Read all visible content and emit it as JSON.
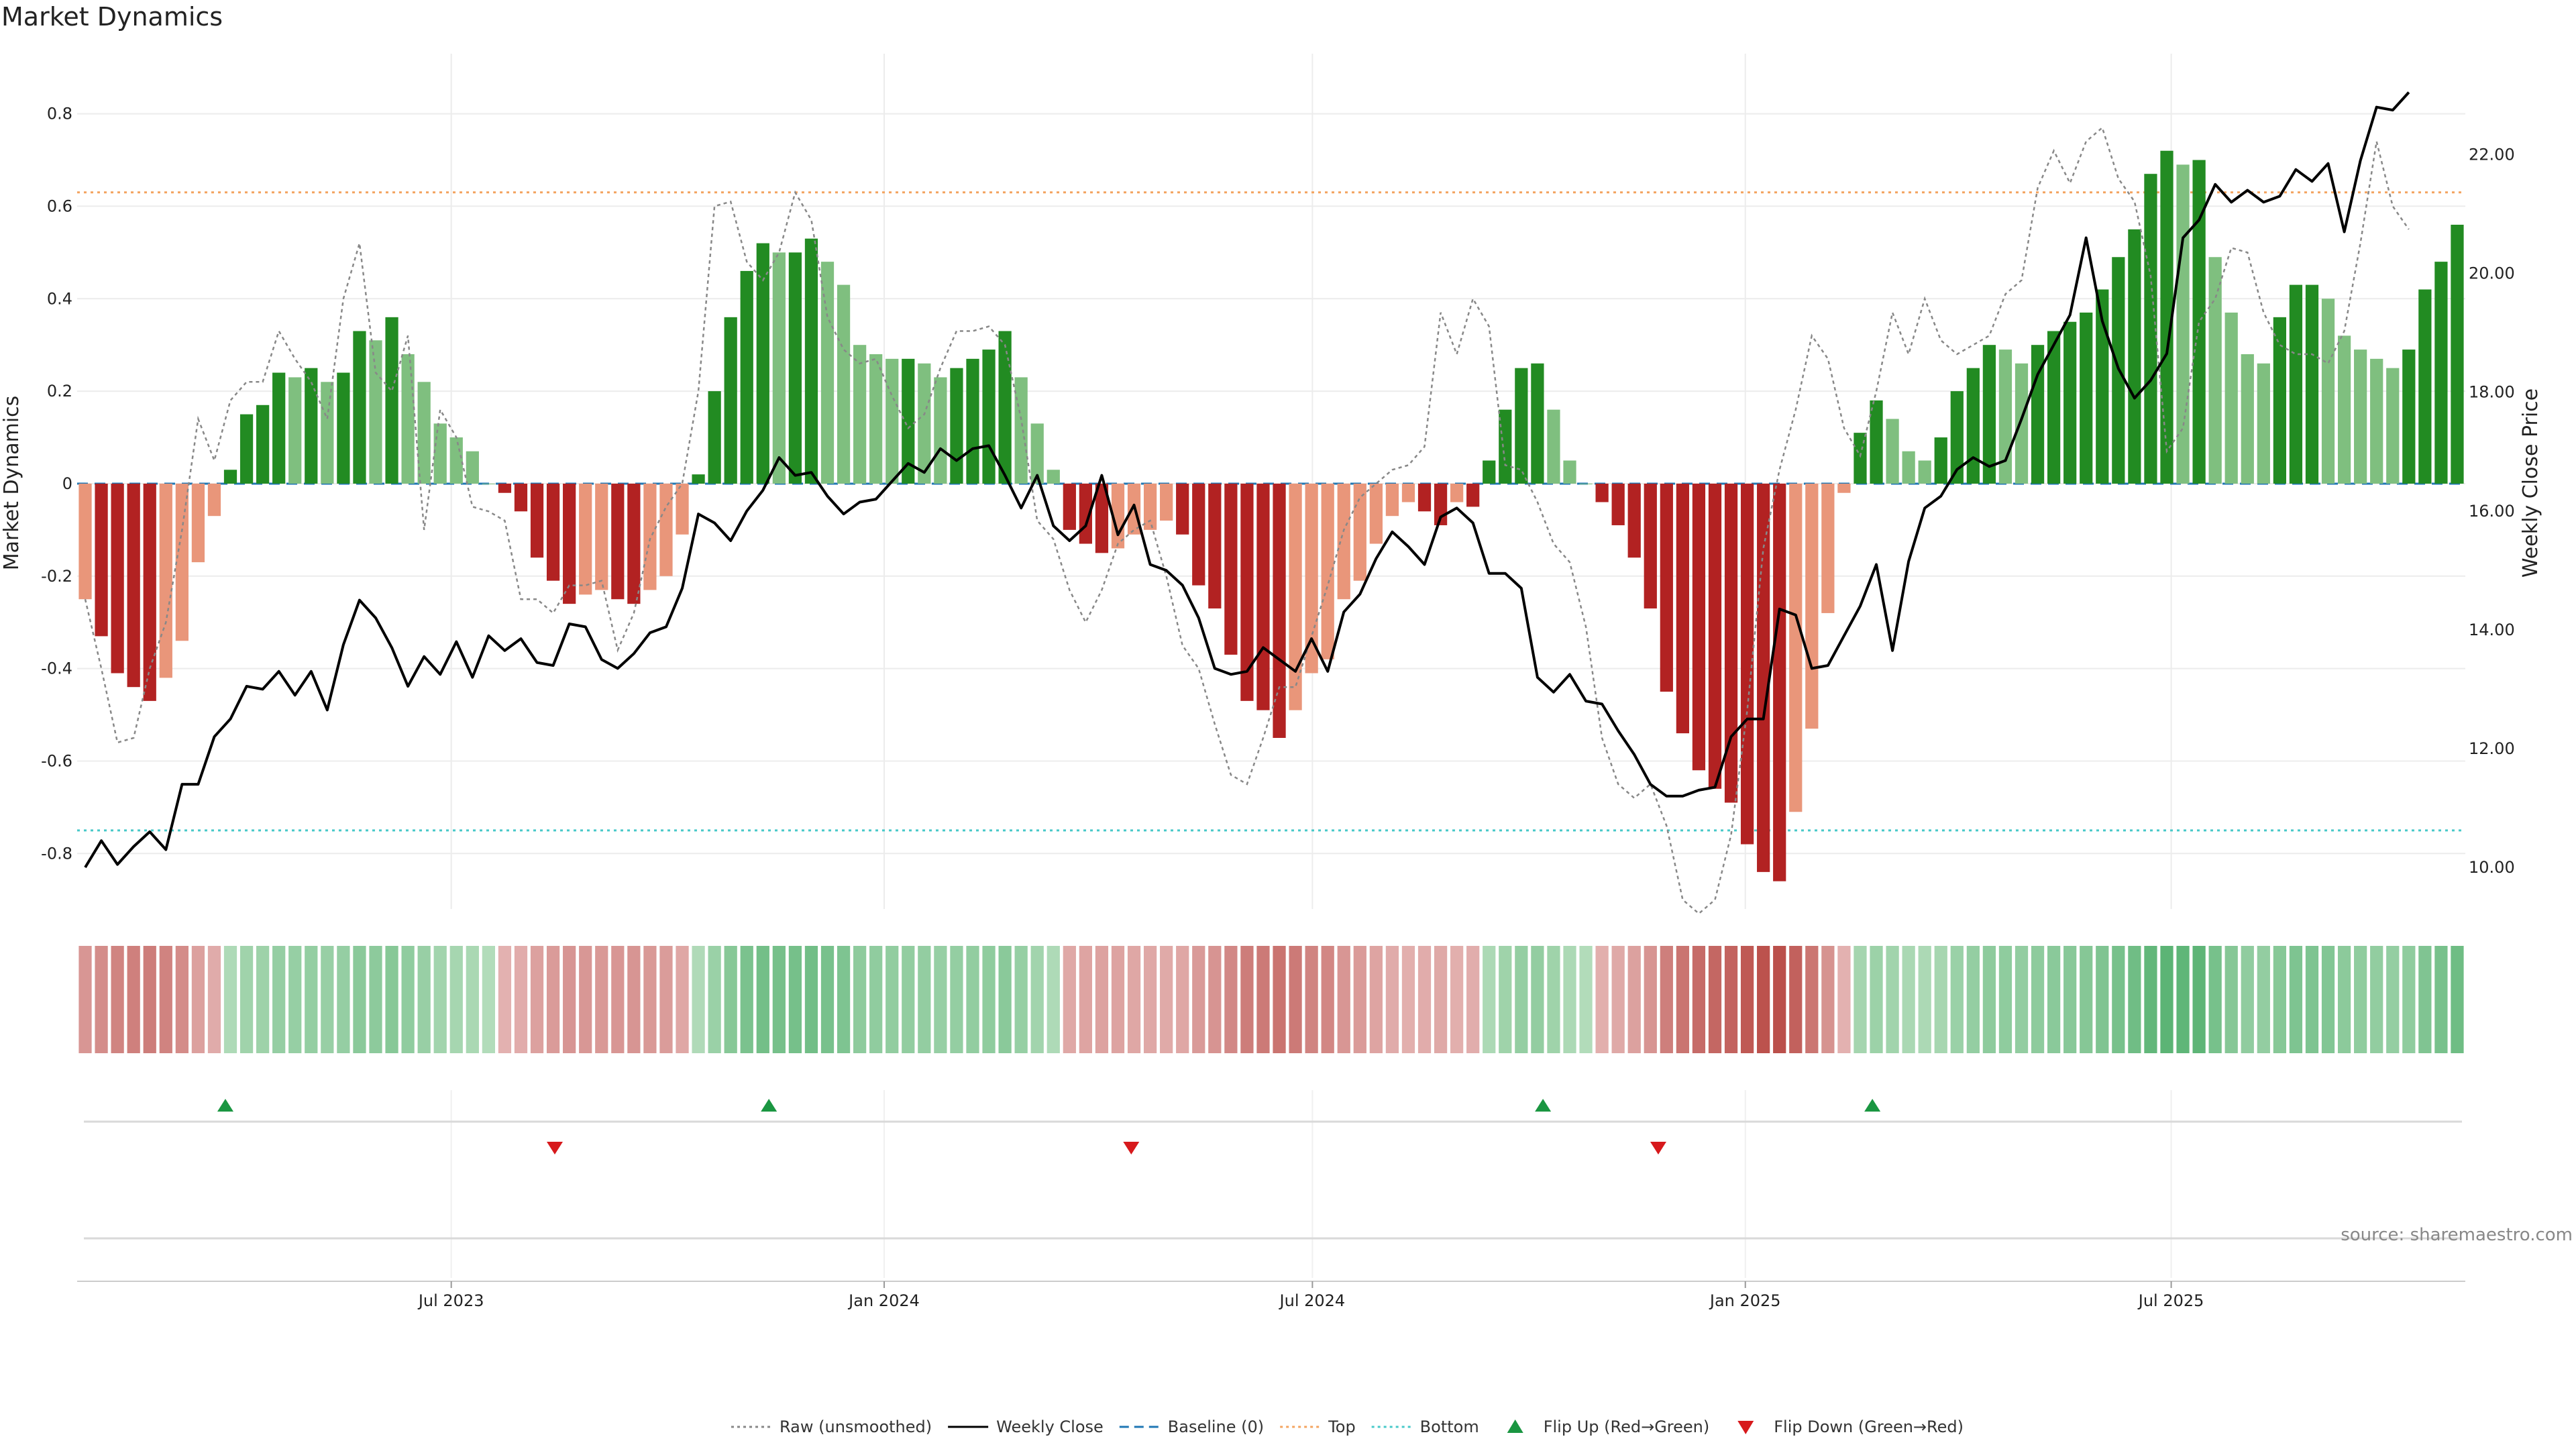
{
  "chart_data": {
    "type": "bar",
    "title": "Market Dynamics",
    "ylabel_left": "Market Dynamics",
    "ylabel_right": "Weekly Close Price",
    "ylim_left": [
      -0.92,
      0.93
    ],
    "ylim_right": [
      9.3,
      23.7
    ],
    "yticks_left": [
      "0.8",
      "0.6",
      "0.4",
      "0.2",
      "0",
      "-0.2",
      "-0.4",
      "-0.6",
      "-0.8"
    ],
    "yticks_right": [
      "22.00",
      "20.00",
      "18.00",
      "16.00",
      "14.00",
      "12.00",
      "10.00"
    ],
    "x_start": "2023-01-23",
    "x_end": "2025-11-03",
    "xticks": [
      {
        "date": "2023-07-01",
        "label": "Jul 2023"
      },
      {
        "date": "2024-01-01",
        "label": "Jan 2024"
      },
      {
        "date": "2024-07-01",
        "label": "Jul 2024"
      },
      {
        "date": "2025-01-01",
        "label": "Jan 2025"
      },
      {
        "date": "2025-07-01",
        "label": "Jul 2025"
      }
    ],
    "top_threshold": 0.63,
    "bottom_threshold": -0.75,
    "baseline": 0,
    "grid": true,
    "legend_position": "bottom-center",
    "colors": {
      "strong_up": "#228b22",
      "weak_up": "#7fbf7f",
      "strong_down": "#b22222",
      "weak_down": "#e9967a",
      "close": "#000000",
      "raw": "#888888",
      "baseline": "#1f77b4",
      "top": "#f4a460",
      "bottom": "#48c9c9",
      "flip_up": "#1a9641",
      "flip_down": "#d7191c"
    },
    "series": [
      {
        "name": "Market Dynamics",
        "values": [
          -0.25,
          -0.33,
          -0.41,
          -0.44,
          -0.47,
          -0.42,
          -0.34,
          -0.17,
          -0.07,
          0.03,
          0.15,
          0.17,
          0.24,
          0.23,
          0.25,
          0.22,
          0.24,
          0.33,
          0.31,
          0.36,
          0.28,
          0.22,
          0.13,
          0.1,
          0.07,
          0.0,
          -0.02,
          -0.06,
          -0.16,
          -0.21,
          -0.26,
          -0.24,
          -0.23,
          -0.25,
          -0.26,
          -0.23,
          -0.2,
          -0.11,
          0.02,
          0.2,
          0.36,
          0.46,
          0.52,
          0.5,
          0.5,
          0.53,
          0.48,
          0.43,
          0.3,
          0.28,
          0.27,
          0.27,
          0.26,
          0.23,
          0.25,
          0.27,
          0.29,
          0.33,
          0.23,
          0.13,
          0.03,
          -0.1,
          -0.13,
          -0.15,
          -0.14,
          -0.11,
          -0.1,
          -0.08,
          -0.11,
          -0.22,
          -0.27,
          -0.37,
          -0.47,
          -0.49,
          -0.55,
          -0.49,
          -0.41,
          -0.38,
          -0.25,
          -0.21,
          -0.13,
          -0.07,
          -0.04,
          -0.06,
          -0.09,
          -0.04,
          -0.05,
          0.05,
          0.16,
          0.25,
          0.26,
          0.16,
          0.05,
          0.0,
          -0.04,
          -0.09,
          -0.16,
          -0.27,
          -0.45,
          -0.54,
          -0.62,
          -0.66,
          -0.69,
          -0.78,
          -0.84,
          -0.86,
          -0.71,
          -0.53,
          -0.28,
          -0.02,
          0.11,
          0.18,
          0.14,
          0.07,
          0.05,
          0.1,
          0.2,
          0.25,
          0.3,
          0.29,
          0.26,
          0.3,
          0.33,
          0.35,
          0.37,
          0.42,
          0.49,
          0.55,
          0.67,
          0.72,
          0.69,
          0.7,
          0.49,
          0.37,
          0.28,
          0.26,
          0.36,
          0.43,
          0.43,
          0.4,
          0.32,
          0.29,
          0.27,
          0.25,
          0.29,
          0.42,
          0.48,
          0.56
        ]
      },
      {
        "name": "Raw (unsmoothed)",
        "values": [
          -0.25,
          -0.4,
          -0.56,
          -0.55,
          -0.4,
          -0.3,
          -0.1,
          0.14,
          0.05,
          0.18,
          0.22,
          0.22,
          0.33,
          0.27,
          0.22,
          0.14,
          0.4,
          0.52,
          0.24,
          0.2,
          0.32,
          -0.1,
          0.16,
          0.1,
          -0.05,
          -0.06,
          -0.08,
          -0.25,
          -0.25,
          -0.28,
          -0.22,
          -0.22,
          -0.21,
          -0.36,
          -0.28,
          -0.12,
          -0.05,
          0.0,
          0.2,
          0.6,
          0.61,
          0.48,
          0.44,
          0.5,
          0.63,
          0.57,
          0.36,
          0.29,
          0.26,
          0.27,
          0.19,
          0.12,
          0.15,
          0.25,
          0.33,
          0.33,
          0.34,
          0.3,
          0.14,
          -0.08,
          -0.12,
          -0.23,
          -0.3,
          -0.23,
          -0.13,
          -0.1,
          -0.08,
          -0.2,
          -0.35,
          -0.4,
          -0.52,
          -0.63,
          -0.65,
          -0.55,
          -0.44,
          -0.44,
          -0.33,
          -0.22,
          -0.1,
          -0.03,
          0.0,
          0.03,
          0.04,
          0.08,
          0.37,
          0.28,
          0.4,
          0.34,
          0.04,
          0.03,
          -0.04,
          -0.13,
          -0.17,
          -0.31,
          -0.55,
          -0.65,
          -0.68,
          -0.65,
          -0.74,
          -0.9,
          -0.93,
          -0.9,
          -0.76,
          -0.49,
          -0.14,
          0.03,
          0.16,
          0.32,
          0.27,
          0.12,
          0.06,
          0.2,
          0.37,
          0.28,
          0.4,
          0.31,
          0.28,
          0.3,
          0.32,
          0.41,
          0.44,
          0.64,
          0.72,
          0.65,
          0.74,
          0.77,
          0.66,
          0.61,
          0.45,
          0.07,
          0.12,
          0.35,
          0.4,
          0.51,
          0.5,
          0.37,
          0.3,
          0.28,
          0.28,
          0.26,
          0.33,
          0.52,
          0.74,
          0.6,
          0.55
        ]
      },
      {
        "name": "Weekly Close",
        "values": [
          10.0,
          10.45,
          10.05,
          10.35,
          10.6,
          10.3,
          11.4,
          11.4,
          12.2,
          12.5,
          13.05,
          13.0,
          13.3,
          12.9,
          13.3,
          12.65,
          13.75,
          14.5,
          14.2,
          13.7,
          13.05,
          13.55,
          13.25,
          13.8,
          13.2,
          13.9,
          13.65,
          13.85,
          13.45,
          13.4,
          14.1,
          14.05,
          13.5,
          13.35,
          13.6,
          13.95,
          14.05,
          14.7,
          15.95,
          15.8,
          15.5,
          16.0,
          16.35,
          16.9,
          16.6,
          16.65,
          16.25,
          15.95,
          16.15,
          16.2,
          16.5,
          16.8,
          16.65,
          17.05,
          16.85,
          17.05,
          17.1,
          16.6,
          16.05,
          16.6,
          15.75,
          15.5,
          15.75,
          16.6,
          15.6,
          16.1,
          15.1,
          15.0,
          14.75,
          14.2,
          13.35,
          13.25,
          13.3,
          13.7,
          13.5,
          13.3,
          13.85,
          13.3,
          14.3,
          14.6,
          15.2,
          15.65,
          15.4,
          15.1,
          15.9,
          16.05,
          15.8,
          14.95,
          14.95,
          14.7,
          13.2,
          12.95,
          13.25,
          12.8,
          12.75,
          12.3,
          11.9,
          11.4,
          11.2,
          11.2,
          11.3,
          11.35,
          12.2,
          12.5,
          12.5,
          14.35,
          14.25,
          13.35,
          13.4,
          13.9,
          14.4,
          15.1,
          13.65,
          15.15,
          16.05,
          16.25,
          16.7,
          16.9,
          16.75,
          16.85,
          17.55,
          18.3,
          18.8,
          19.3,
          20.6,
          19.2,
          18.4,
          17.9,
          18.2,
          18.65,
          20.6,
          20.9,
          21.5,
          21.2,
          21.4,
          21.2,
          21.3,
          21.75,
          21.55,
          21.85,
          20.7,
          21.9,
          22.8,
          22.75,
          23.05
        ]
      }
    ],
    "regime_strength": [
      -0.25,
      -0.33,
      -0.41,
      -0.44,
      -0.47,
      -0.42,
      -0.34,
      -0.17,
      -0.07,
      0.03,
      0.15,
      0.17,
      0.24,
      0.23,
      0.25,
      0.22,
      0.24,
      0.33,
      0.31,
      0.36,
      0.28,
      0.22,
      0.13,
      0.1,
      0.07,
      0.0,
      -0.02,
      -0.06,
      -0.16,
      -0.21,
      -0.26,
      -0.24,
      -0.23,
      -0.25,
      -0.26,
      -0.23,
      -0.2,
      -0.11,
      0.02,
      0.2,
      0.36,
      0.46,
      0.52,
      0.5,
      0.5,
      0.53,
      0.48,
      0.43,
      0.3,
      0.28,
      0.27,
      0.27,
      0.26,
      0.23,
      0.25,
      0.27,
      0.29,
      0.33,
      0.23,
      0.13,
      0.03,
      -0.1,
      -0.13,
      -0.15,
      -0.14,
      -0.11,
      -0.1,
      -0.08,
      -0.11,
      -0.22,
      -0.27,
      -0.37,
      -0.47,
      -0.49,
      -0.55,
      -0.49,
      -0.41,
      -0.38,
      -0.25,
      -0.21,
      -0.13,
      -0.07,
      -0.04,
      -0.06,
      -0.09,
      -0.04,
      -0.05,
      0.05,
      0.16,
      0.25,
      0.26,
      0.16,
      0.05,
      0.0,
      -0.04,
      -0.09,
      -0.16,
      -0.27,
      -0.45,
      -0.54,
      -0.62,
      -0.66,
      -0.69,
      -0.78,
      -0.84,
      -0.86,
      -0.71,
      -0.53,
      -0.28,
      -0.02,
      0.11,
      0.18,
      0.14,
      0.07,
      0.05,
      0.1,
      0.2,
      0.25,
      0.3,
      0.29,
      0.26,
      0.3,
      0.33,
      0.35,
      0.37,
      0.42,
      0.49,
      0.55,
      0.67,
      0.72,
      0.69,
      0.7,
      0.49,
      0.37,
      0.28,
      0.26,
      0.36,
      0.43,
      0.43,
      0.4,
      0.32,
      0.29,
      0.27,
      0.25,
      0.29,
      0.42,
      0.48,
      0.56
    ],
    "flip_up_dates": [
      "2023-03-27",
      "2023-11-13",
      "2024-10-07",
      "2025-02-24"
    ],
    "flip_down_dates": [
      "2023-08-14",
      "2024-04-15",
      "2024-11-25"
    ],
    "legend": [
      {
        "label": "Raw (unsmoothed)",
        "style": "dotted-line",
        "color": "#888888"
      },
      {
        "label": "Weekly Close",
        "style": "line",
        "color": "#000000"
      },
      {
        "label": "Baseline (0)",
        "style": "dashed-line",
        "color": "#1f77b4"
      },
      {
        "label": "Top",
        "style": "dotted-line",
        "color": "#f4a460"
      },
      {
        "label": "Bottom",
        "style": "dotted-line",
        "color": "#48c9c9"
      },
      {
        "label": "Flip Up (Red→Green)",
        "style": "triangle-up",
        "color": "#1a9641"
      },
      {
        "label": "Flip Down (Green→Red)",
        "style": "triangle-down",
        "color": "#d7191c"
      }
    ],
    "source": "source: sharemaestro.com"
  }
}
